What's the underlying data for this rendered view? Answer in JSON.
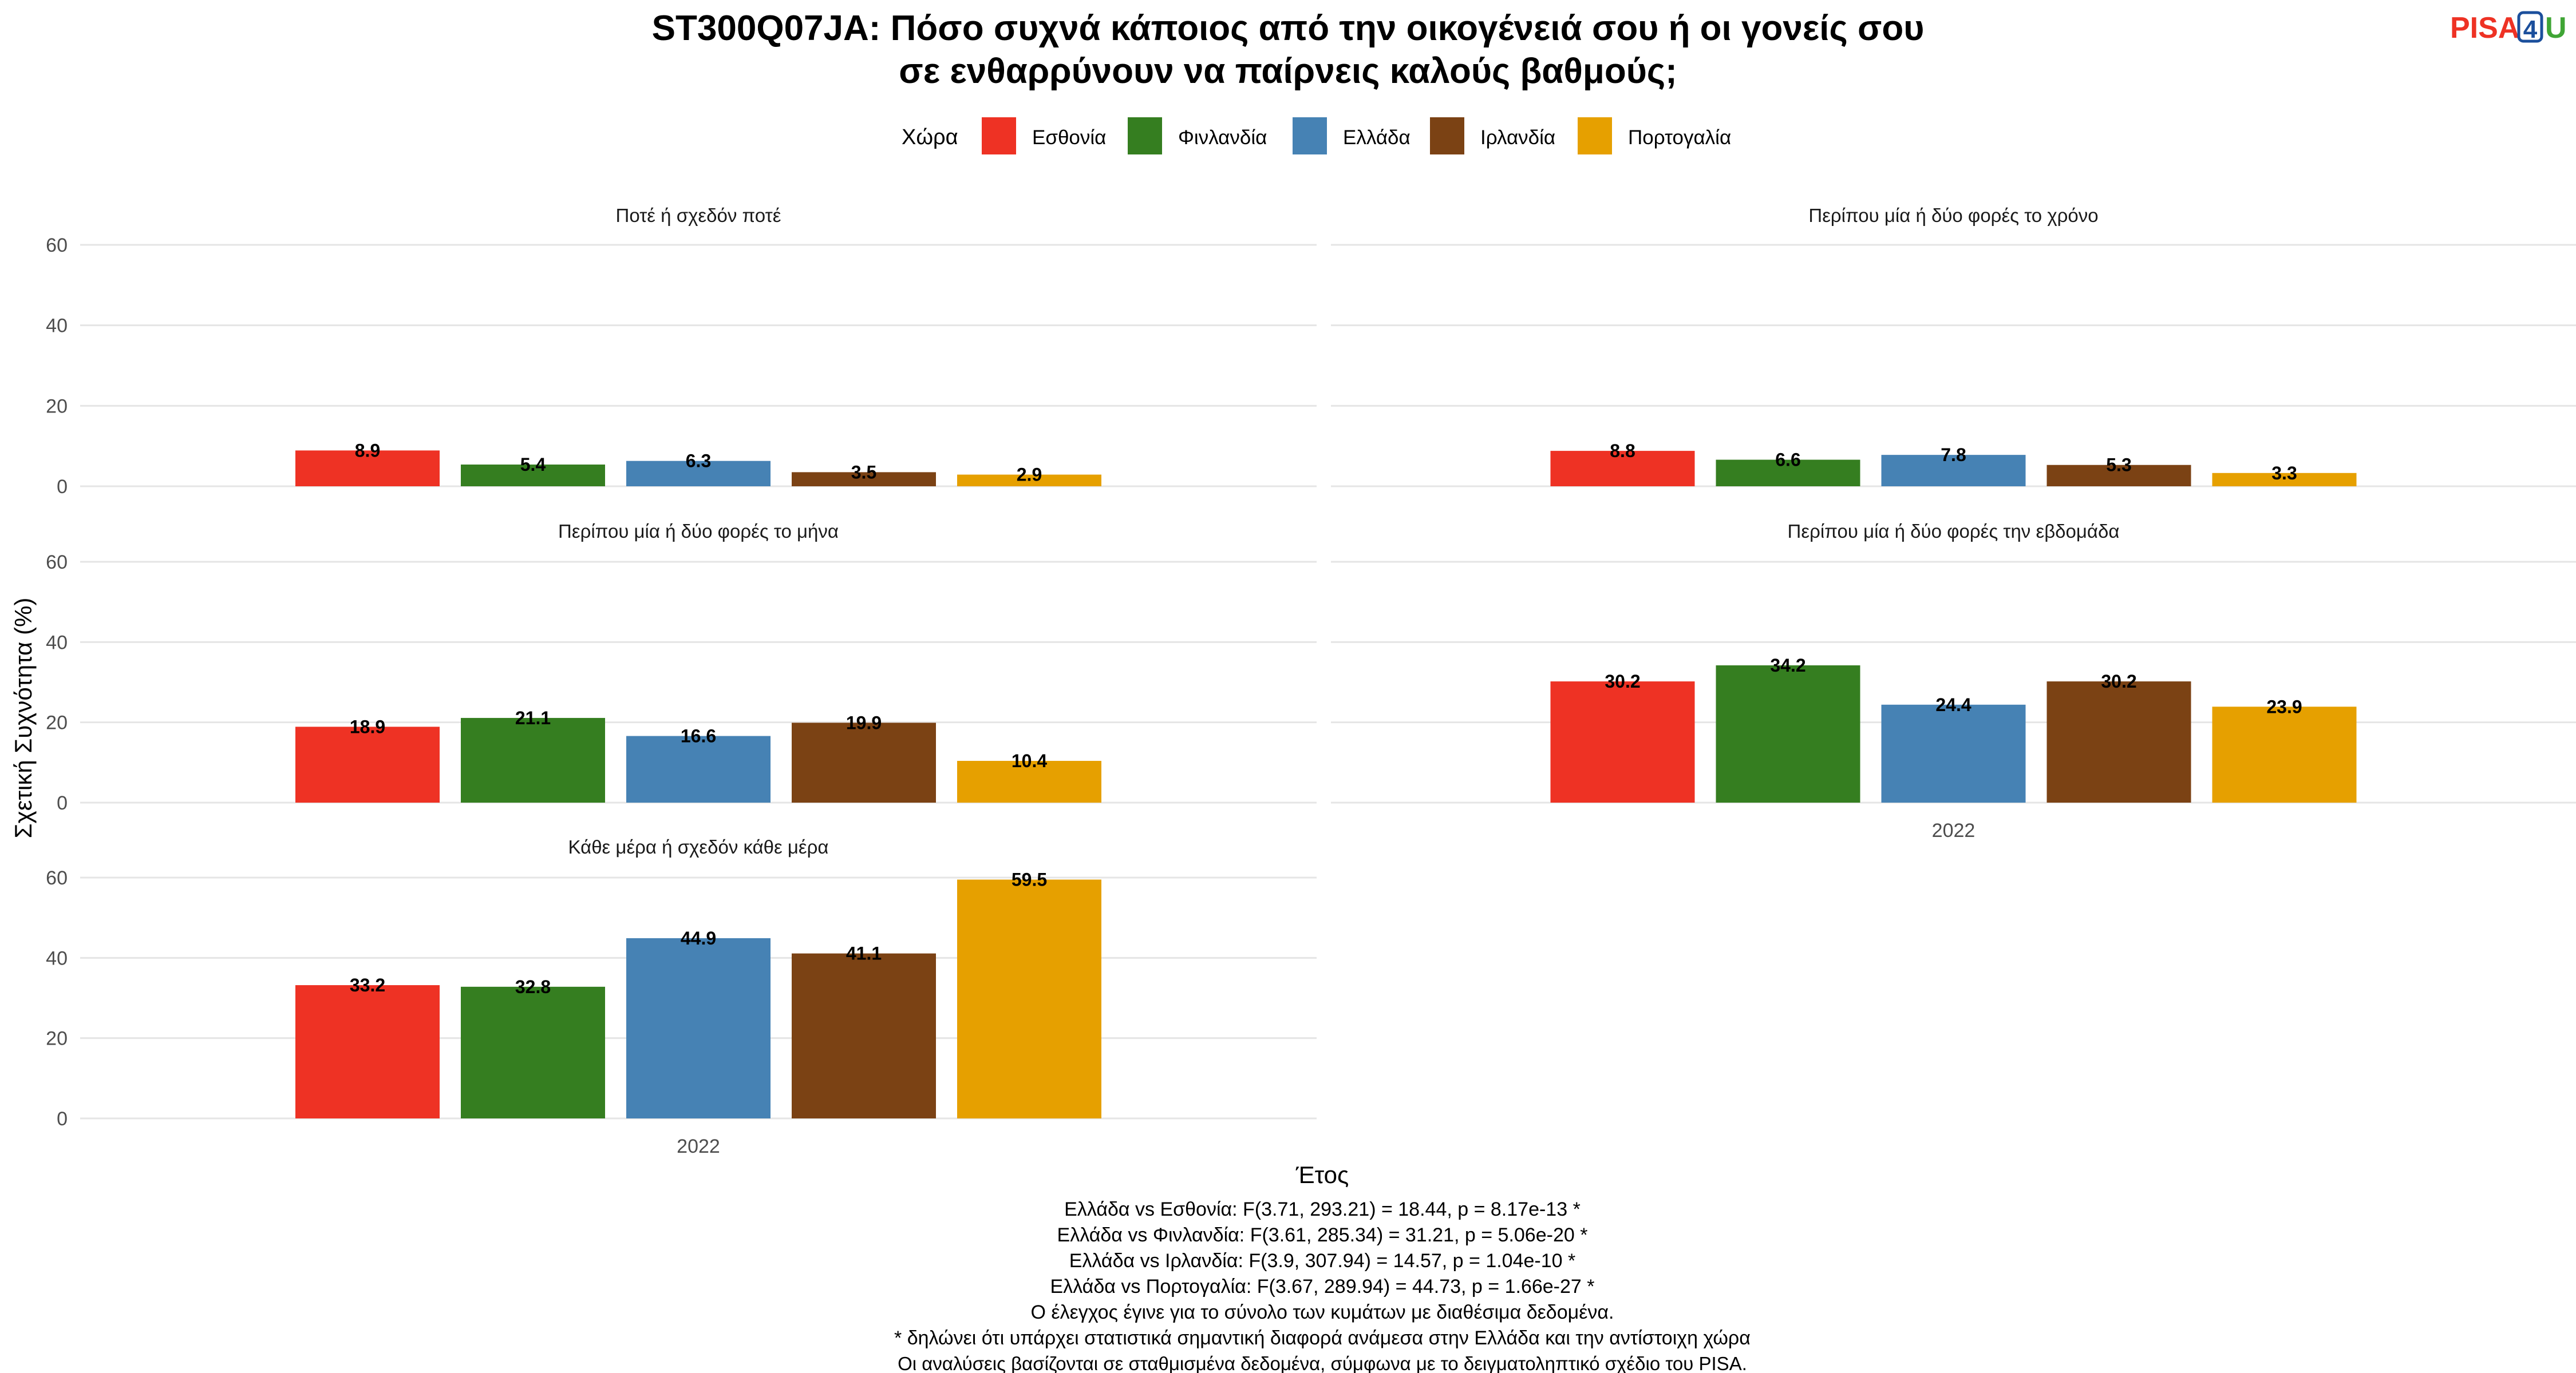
{
  "title": [
    "ST300Q07JA: Πόσο συχνά κάποιος από την οικογένειά σου ή οι γονείς σου",
    "σε ενθαρρύνουν να παίρνεις καλούς βαθμούς;"
  ],
  "logo": {
    "part1": "PISA",
    "part2": "4",
    "part3": "U"
  },
  "legend": {
    "title": "Χώρα",
    "position": "top",
    "items": [
      {
        "name": "Εσθονία",
        "color": "#EE3224"
      },
      {
        "name": "Φινλανδία",
        "color": "#357E20"
      },
      {
        "name": "Ελλάδα",
        "color": "#4682B4"
      },
      {
        "name": "Ιρλανδία",
        "color": "#7B4214"
      },
      {
        "name": "Πορτογαλία",
        "color": "#E6A000"
      }
    ]
  },
  "chart_data": {
    "type": "bar",
    "ylabel": "Σχετική Συχνότητα (%)",
    "xlabel": "Έτος",
    "ylim": [
      0,
      60
    ],
    "yticks": [
      "0",
      "20",
      "40",
      "60"
    ],
    "grid": true,
    "x_category": "2022",
    "series_names": [
      "Εσθονία",
      "Φινλανδία",
      "Ελλάδα",
      "Ιρλανδία",
      "Πορτογαλία"
    ],
    "panels": [
      {
        "title": "Ποτέ ή σχεδόν ποτέ",
        "values": [
          8.9,
          5.4,
          6.3,
          3.5,
          2.9
        ],
        "labels": [
          "8.9",
          "5.4",
          "6.3",
          "3.5",
          "2.9"
        ]
      },
      {
        "title": "Περίπου μία ή δύο φορές το χρόνο",
        "values": [
          8.8,
          6.6,
          7.8,
          5.3,
          3.3
        ],
        "labels": [
          "8.8",
          "6.6",
          "7.8",
          "5.3",
          "3.3"
        ]
      },
      {
        "title": "Περίπου μία ή δύο φορές το μήνα",
        "values": [
          18.9,
          21.1,
          16.6,
          19.9,
          10.4
        ],
        "labels": [
          "18.9",
          "21.1",
          "16.6",
          "19.9",
          "10.4"
        ]
      },
      {
        "title": "Περίπου μία ή δύο φορές την εβδομάδα",
        "values": [
          30.2,
          34.2,
          24.4,
          30.2,
          23.9
        ],
        "labels": [
          "30.2",
          "34.2",
          "24.4",
          "30.2",
          "23.9"
        ]
      },
      {
        "title": "Κάθε μέρα ή σχεδόν κάθε μέρα",
        "values": [
          33.2,
          32.8,
          44.9,
          41.1,
          59.5
        ],
        "labels": [
          "33.2",
          "32.8",
          "44.9",
          "41.1",
          "59.5"
        ]
      }
    ]
  },
  "footnotes": [
    "Ελλάδα vs Εσθονία: F(3.71, 293.21) = 18.44, p = 8.17e-13 *",
    "Ελλάδα vs Φινλανδία: F(3.61, 285.34) = 31.21, p = 5.06e-20 *",
    "Ελλάδα vs Ιρλανδία: F(3.9, 307.94) = 14.57, p = 1.04e-10 *",
    "Ελλάδα vs Πορτογαλία: F(3.67, 289.94) = 44.73, p = 1.66e-27 *",
    "Ο έλεγχος έγινε για το σύνολο των κυμάτων με διαθέσιμα δεδομένα.",
    "* δηλώνει ότι υπάρχει στατιστικά σημαντική διαφορά ανάμεσα στην Ελλάδα και την αντίστοιχη χώρα",
    "Οι αναλύσεις βασίζονται σε σταθμισμένα δεδομένα, σύμφωνα με το δειγματοληπτικό σχέδιο του PISA."
  ]
}
